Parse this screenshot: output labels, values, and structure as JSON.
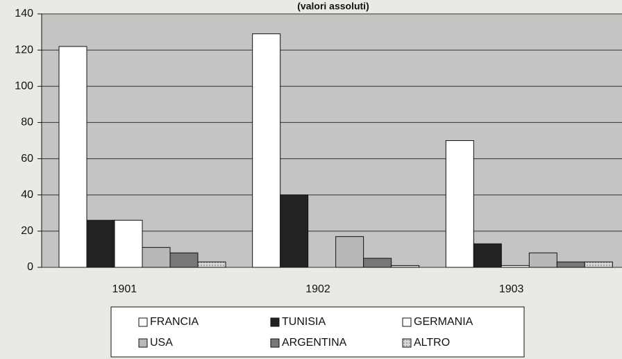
{
  "chart_data": {
    "type": "bar",
    "subtitle": "(valori assoluti)",
    "categories": [
      "1901",
      "1902",
      "1903"
    ],
    "series": [
      {
        "name": "FRANCIA",
        "color": "#ffffff",
        "values": [
          122,
          129,
          70
        ]
      },
      {
        "name": "TUNISIA",
        "color": "#222222",
        "values": [
          26,
          40,
          13
        ]
      },
      {
        "name": "GERMANIA",
        "color": "#ffffff",
        "values": [
          26,
          0,
          1
        ]
      },
      {
        "name": "USA",
        "color": "#b8b8b8",
        "values": [
          11,
          17,
          8
        ]
      },
      {
        "name": "ARGENTINA",
        "color": "#777777",
        "values": [
          8,
          5,
          3
        ]
      },
      {
        "name": "ALTRO",
        "color": "url(#dots)",
        "values": [
          3,
          1,
          3
        ]
      }
    ],
    "ylim": [
      0,
      140
    ],
    "yticks": [
      0,
      20,
      40,
      60,
      80,
      100,
      120,
      140
    ],
    "grid": true
  }
}
